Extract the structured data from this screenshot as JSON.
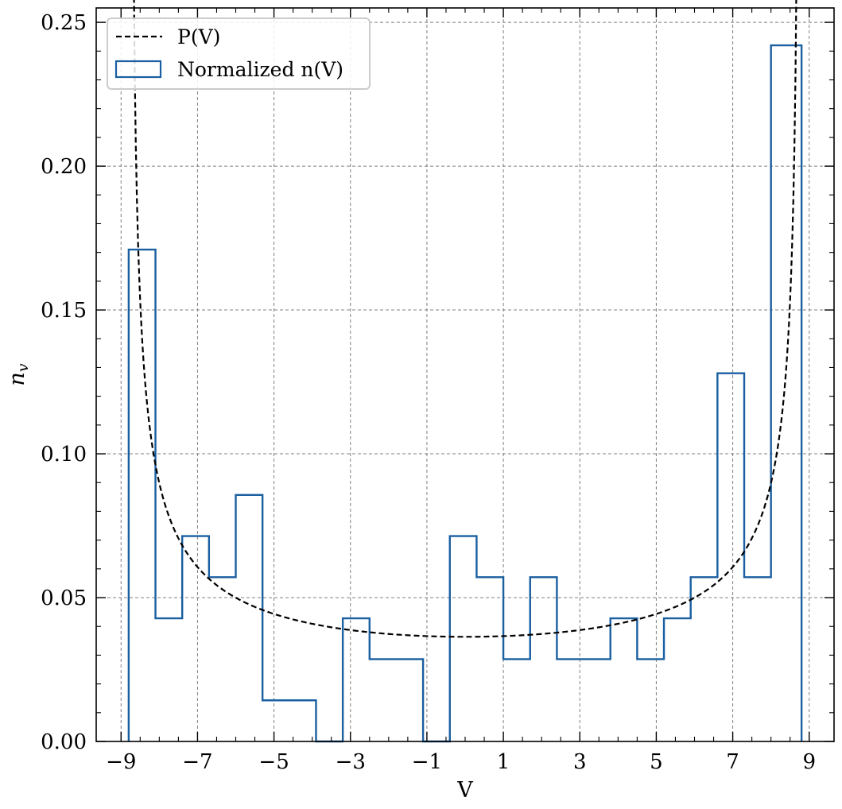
{
  "chart_data": {
    "type": "histogram",
    "xlabel": "V",
    "ylabel": "n",
    "ylabel_sub": "v",
    "xlim": [
      -9.65,
      9.65
    ],
    "ylim": [
      0,
      0.255
    ],
    "x_ticks": [
      -9,
      -7,
      -5,
      -3,
      -1,
      1,
      3,
      5,
      7,
      9
    ],
    "y_ticks": [
      0.0,
      0.05,
      0.1,
      0.15,
      0.2,
      0.25
    ],
    "y_tick_labels": [
      "0.00",
      "0.05",
      "0.10",
      "0.15",
      "0.20",
      "0.25"
    ],
    "grid": true,
    "legend_position": "top-left",
    "series": [
      {
        "name": "P(V)",
        "kind": "line",
        "style": "dashed",
        "color": "#000000",
        "amplitude": 8.75,
        "x_range": [
          -8.7,
          8.7
        ],
        "formula": "1/(pi*sqrt(A^2 - V^2))"
      },
      {
        "name": "Normalized n(V)",
        "kind": "step-histogram",
        "color": "#1a5fa0",
        "bin_edges": [
          -8.8,
          -8.1,
          -7.4,
          -6.7,
          -6.0,
          -5.3,
          -4.6,
          -3.9,
          -3.2,
          -2.5,
          -1.8,
          -1.1,
          -0.4,
          0.3,
          1.0,
          1.7,
          2.4,
          3.1,
          3.8,
          4.5,
          5.2,
          5.9,
          6.6,
          7.3,
          8.0,
          8.8
        ],
        "values": [
          0.171,
          0.0428,
          0.0714,
          0.0571,
          0.0857,
          0.0143,
          0.0143,
          0.0,
          0.0428,
          0.0286,
          0.0286,
          0.0,
          0.0714,
          0.0571,
          0.0286,
          0.0571,
          0.0286,
          0.0286,
          0.0428,
          0.0286,
          0.0428,
          0.0571,
          0.128,
          0.0571,
          0.242
        ]
      }
    ]
  }
}
